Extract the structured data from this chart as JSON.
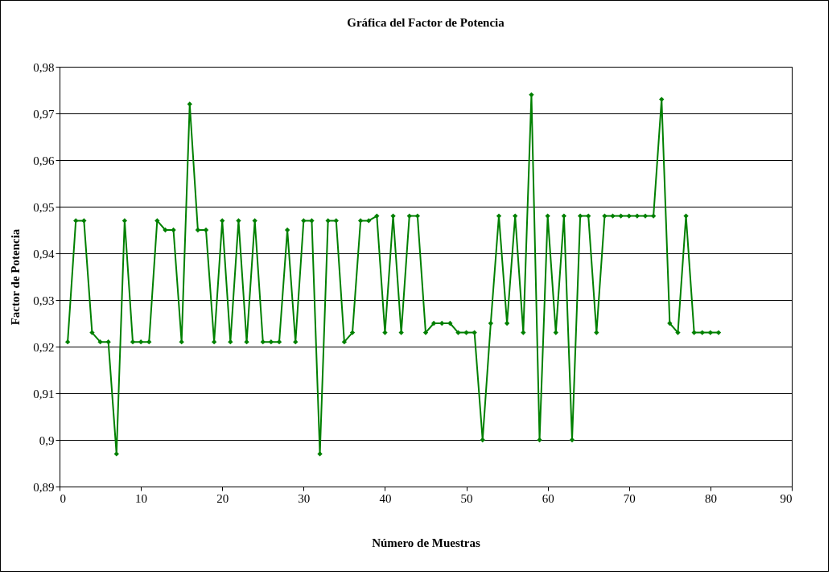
{
  "chart_data": {
    "type": "line",
    "title": "Gráfica del Factor de Potencia",
    "xlabel": "Número de Muestras",
    "ylabel": "Factor de Potencia",
    "x": [
      1,
      2,
      3,
      4,
      5,
      6,
      7,
      8,
      9,
      10,
      11,
      12,
      13,
      14,
      15,
      16,
      17,
      18,
      19,
      20,
      21,
      22,
      23,
      24,
      25,
      26,
      27,
      28,
      29,
      30,
      31,
      32,
      33,
      34,
      35,
      36,
      37,
      38,
      39,
      40,
      41,
      42,
      43,
      44,
      45,
      46,
      47,
      48,
      49,
      50,
      51,
      52,
      53,
      54,
      55,
      56,
      57,
      58,
      59,
      60,
      61,
      62,
      63,
      64,
      65,
      66,
      67,
      68,
      69,
      70,
      71,
      72,
      73,
      74,
      75,
      76,
      77,
      78,
      79,
      80,
      81
    ],
    "series": [
      {
        "color": "#008000",
        "values": [
          0.921,
          0.947,
          0.947,
          0.923,
          0.921,
          0.921,
          0.897,
          0.947,
          0.921,
          0.921,
          0.921,
          0.947,
          0.945,
          0.945,
          0.921,
          0.972,
          0.945,
          0.945,
          0.921,
          0.947,
          0.921,
          0.947,
          0.921,
          0.947,
          0.921,
          0.921,
          0.921,
          0.945,
          0.921,
          0.947,
          0.947,
          0.897,
          0.947,
          0.947,
          0.921,
          0.923,
          0.947,
          0.947,
          0.948,
          0.923,
          0.948,
          0.923,
          0.948,
          0.948,
          0.923,
          0.925,
          0.925,
          0.925,
          0.923,
          0.923,
          0.923,
          0.9,
          0.925,
          0.948,
          0.925,
          0.948,
          0.923,
          0.974,
          0.9,
          0.948,
          0.923,
          0.948,
          0.9,
          0.948,
          0.948,
          0.923,
          0.948,
          0.948,
          0.948,
          0.948,
          0.948,
          0.948,
          0.948,
          0.973,
          0.925,
          0.923,
          0.948,
          0.923,
          0.923,
          0.923,
          0.923
        ]
      }
    ],
    "xlim": [
      0,
      90
    ],
    "xticks": [
      0,
      10,
      20,
      30,
      40,
      50,
      60,
      70,
      80,
      90
    ],
    "ylim": [
      0.89,
      0.98
    ],
    "yticks": [
      {
        "value": 0.89,
        "label": "0,89"
      },
      {
        "value": 0.9,
        "label": "0,9"
      },
      {
        "value": 0.91,
        "label": "0,91"
      },
      {
        "value": 0.92,
        "label": "0,92"
      },
      {
        "value": 0.93,
        "label": "0,93"
      },
      {
        "value": 0.94,
        "label": "0,94"
      },
      {
        "value": 0.95,
        "label": "0,95"
      },
      {
        "value": 0.96,
        "label": "0,96"
      },
      {
        "value": 0.97,
        "label": "0,97"
      },
      {
        "value": 0.98,
        "label": "0,98"
      }
    ],
    "grid": "y",
    "marker": "diamond",
    "line_style": "solid"
  }
}
